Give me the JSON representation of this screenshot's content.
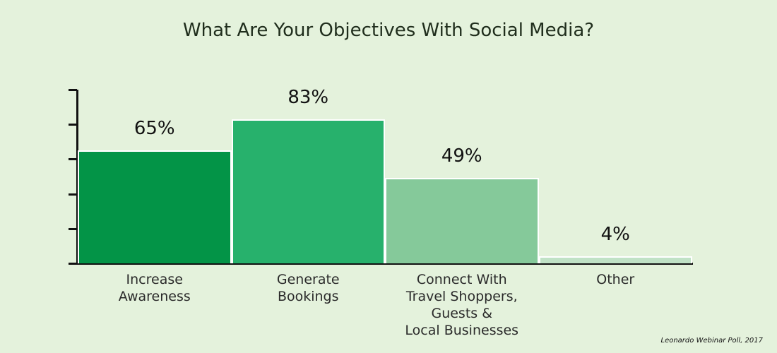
{
  "title": "What Are Your Objectives With Social Media?",
  "source": "Leonardo Webinar Poll, 2017",
  "chart_data": {
    "type": "bar",
    "title": "What Are Your Objectives With Social Media?",
    "xlabel": "",
    "ylabel": "",
    "ylim": [
      0,
      100
    ],
    "yticks": [
      0,
      20,
      40,
      60,
      80,
      100
    ],
    "ytick_labels_shown": false,
    "grid": false,
    "legend": "none",
    "categories": [
      "Increase Awareness",
      "Generate Bookings",
      "Connect With Travel Shoppers, Guests & Local Businesses",
      "Other"
    ],
    "values": [
      65,
      83,
      49,
      4
    ],
    "value_labels": [
      "65%",
      "83%",
      "49%",
      "4%"
    ],
    "colors": [
      "#039447",
      "#27b16c",
      "#85c99a",
      "#c0e2c6"
    ],
    "annotations": [
      "Leonardo Webinar Poll, 2017"
    ]
  },
  "bars": [
    {
      "label": "Increase\nAwareness",
      "value_label": "65%"
    },
    {
      "label": "Generate\nBookings",
      "value_label": "83%"
    },
    {
      "label": "Connect With\nTravel Shoppers,\nGuests &\nLocal Businesses",
      "value_label": "49%"
    },
    {
      "label": "Other",
      "value_label": "4%"
    }
  ]
}
